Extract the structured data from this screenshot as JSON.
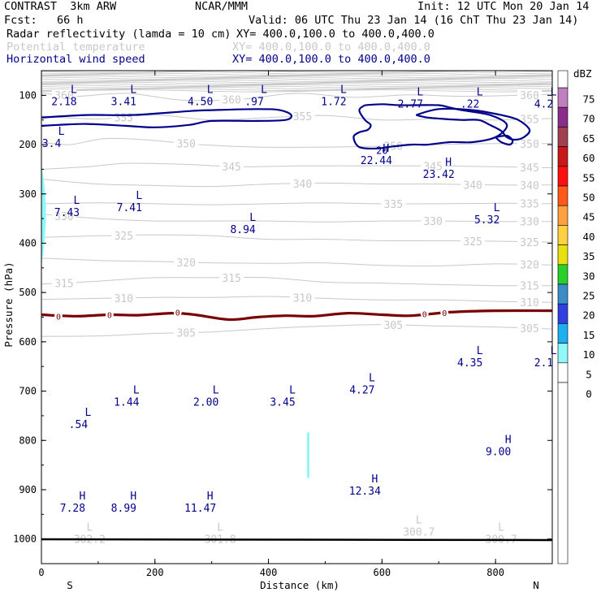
{
  "header": {
    "line1_left": "CONTRAST  3km ARW",
    "line1_mid": "NCAR/MMM",
    "line1_right": "Init: 12 UTC Mon 20 Jan 14",
    "line2_left": "Fcst:   66 h",
    "line2_right": "Valid: 06 UTC Thu 23 Jan 14 (16 ChT Thu 23 Jan 14)",
    "fields": [
      {
        "name": "Radar reflectivity (lamda = 10 cm)",
        "xy": "XY= 400.0,100.0 to 400.0,400.0",
        "color": "#000000"
      },
      {
        "name": "Potential temperature",
        "xy": "XY= 400.0,100.0 to 400.0,400.0",
        "color": "#c8c8c8"
      },
      {
        "name": "Horizontal wind speed",
        "xy": "XY= 400.0,100.0 to 400.0,400.0",
        "color": "#00008b"
      }
    ]
  },
  "chart_data": {
    "type": "contour",
    "xlabel": "Distance (km)",
    "ylabel": "Pressure (hPa)",
    "xlim": [
      0,
      900
    ],
    "ylim": [
      1050,
      50
    ],
    "x_ticks": [
      "0",
      "200",
      "400",
      "600",
      "800"
    ],
    "x_tick_values": [
      0,
      200,
      400,
      600,
      800
    ],
    "y_ticks": [
      "100",
      "200",
      "300",
      "400",
      "500",
      "600",
      "700",
      "800",
      "900",
      "1000"
    ],
    "y_tick_values": [
      100,
      200,
      300,
      400,
      500,
      600,
      700,
      800,
      900,
      1000
    ],
    "x_end_labels": {
      "left": "S",
      "right": "N"
    },
    "theta_contours": [
      {
        "value": 360,
        "p": [
          [
            0,
            95
          ],
          [
            60,
            102
          ],
          [
            150,
            96
          ],
          [
            250,
            110
          ],
          [
            350,
            108
          ],
          [
            450,
            96
          ],
          [
            550,
            104
          ],
          [
            650,
            99
          ],
          [
            750,
            102
          ],
          [
            900,
            98
          ]
        ]
      },
      {
        "value": 355,
        "p": [
          [
            0,
            142
          ],
          [
            100,
            148
          ],
          [
            200,
            140
          ],
          [
            300,
            150
          ],
          [
            400,
            145
          ],
          [
            500,
            141
          ],
          [
            600,
            150
          ],
          [
            700,
            148
          ],
          [
            800,
            150
          ],
          [
            900,
            147
          ]
        ]
      },
      {
        "value": 350,
        "p": [
          [
            0,
            195
          ],
          [
            50,
            200
          ],
          [
            110,
            188
          ],
          [
            180,
            190
          ],
          [
            280,
            200
          ],
          [
            380,
            205
          ],
          [
            500,
            205
          ],
          [
            600,
            203
          ],
          [
            700,
            200
          ],
          [
            800,
            198
          ],
          [
            900,
            198
          ]
        ]
      },
      {
        "value": 345,
        "p": [
          [
            0,
            250
          ],
          [
            80,
            245
          ],
          [
            150,
            238
          ],
          [
            250,
            240
          ],
          [
            350,
            245
          ],
          [
            450,
            243
          ],
          [
            550,
            243
          ],
          [
            650,
            243
          ],
          [
            750,
            244
          ],
          [
            900,
            247
          ]
        ]
      },
      {
        "value": 340,
        "p": [
          [
            0,
            270
          ],
          [
            100,
            280
          ],
          [
            200,
            283
          ],
          [
            300,
            285
          ],
          [
            400,
            280
          ],
          [
            500,
            278
          ],
          [
            600,
            280
          ],
          [
            700,
            280
          ],
          [
            800,
            282
          ],
          [
            900,
            282
          ]
        ]
      },
      {
        "value": 335,
        "p": [
          [
            0,
            320
          ],
          [
            100,
            318
          ],
          [
            200,
            320
          ],
          [
            300,
            322
          ],
          [
            400,
            320
          ],
          [
            500,
            318
          ],
          [
            600,
            320
          ],
          [
            700,
            320
          ],
          [
            800,
            319
          ],
          [
            900,
            320
          ]
        ]
      },
      {
        "value": 330,
        "p": [
          [
            0,
            341
          ],
          [
            100,
            350
          ],
          [
            200,
            355
          ],
          [
            300,
            355
          ],
          [
            400,
            355
          ],
          [
            500,
            357
          ],
          [
            600,
            355
          ],
          [
            700,
            355
          ],
          [
            800,
            356
          ],
          [
            900,
            356
          ]
        ]
      },
      {
        "value": 325,
        "p": [
          [
            0,
            388
          ],
          [
            100,
            385
          ],
          [
            200,
            383
          ],
          [
            300,
            385
          ],
          [
            400,
            392
          ],
          [
            500,
            392
          ],
          [
            600,
            395
          ],
          [
            700,
            395
          ],
          [
            800,
            396
          ],
          [
            900,
            398
          ]
        ]
      },
      {
        "value": 320,
        "p": [
          [
            0,
            430
          ],
          [
            100,
            435
          ],
          [
            200,
            437
          ],
          [
            300,
            440
          ],
          [
            400,
            441
          ],
          [
            500,
            440
          ],
          [
            600,
            445
          ],
          [
            700,
            446
          ],
          [
            800,
            442
          ],
          [
            900,
            444
          ]
        ]
      },
      {
        "value": 315,
        "p": [
          [
            0,
            483
          ],
          [
            100,
            477
          ],
          [
            200,
            470
          ],
          [
            300,
            470
          ],
          [
            400,
            470
          ],
          [
            500,
            479
          ],
          [
            600,
            481
          ],
          [
            700,
            484
          ],
          [
            800,
            486
          ],
          [
            900,
            486
          ]
        ]
      },
      {
        "value": 310,
        "p": [
          [
            0,
            514
          ],
          [
            100,
            512
          ],
          [
            200,
            510
          ],
          [
            300,
            510
          ],
          [
            400,
            508
          ],
          [
            500,
            512
          ],
          [
            600,
            515
          ],
          [
            700,
            515
          ],
          [
            800,
            518
          ],
          [
            900,
            520
          ]
        ]
      },
      {
        "value": 305,
        "p": [
          [
            0,
            589
          ],
          [
            100,
            588
          ],
          [
            200,
            583
          ],
          [
            300,
            580
          ],
          [
            400,
            573
          ],
          [
            500,
            568
          ],
          [
            600,
            565
          ],
          [
            700,
            568
          ],
          [
            800,
            570
          ],
          [
            900,
            574
          ]
        ]
      }
    ],
    "freezing_line_label": "0",
    "reflectivity_cells": [
      {
        "x": 3,
        "p": 335,
        "dbz": 7.5
      },
      {
        "x": 470,
        "p": 830,
        "dbz": 7.5
      }
    ],
    "wind_labels": [
      {
        "type": "L",
        "value": "2.18",
        "x": 40,
        "p": 105
      },
      {
        "type": "L",
        "value": "3.41",
        "x": 145,
        "p": 105
      },
      {
        "type": "L",
        "value": "4.50",
        "x": 280,
        "p": 105
      },
      {
        "type": "L",
        "value": ".97",
        "x": 375,
        "p": 105
      },
      {
        "type": "L",
        "value": "1.72",
        "x": 515,
        "p": 105
      },
      {
        "type": "L",
        "value": "2.77",
        "x": 650,
        "p": 110
      },
      {
        "type": "L",
        "value": ".22",
        "x": 755,
        "p": 110
      },
      {
        "type": "L",
        "value": "4.2",
        "x": 885,
        "p": 110
      },
      {
        "type": "L",
        "value": "3.4",
        "x": 18,
        "p": 190
      },
      {
        "type": "H",
        "value": "22.44",
        "x": 590,
        "p": 225
      },
      {
        "type": "H",
        "value": "23.42",
        "x": 700,
        "p": 253
      },
      {
        "type": "L",
        "value": "7.43",
        "x": 45,
        "p": 330
      },
      {
        "type": "L",
        "value": "7.41",
        "x": 155,
        "p": 320
      },
      {
        "type": "L",
        "value": "8.94",
        "x": 355,
        "p": 365
      },
      {
        "type": "L",
        "value": "5.32",
        "x": 785,
        "p": 345
      },
      {
        "type": "L",
        "value": "4.35",
        "x": 755,
        "p": 635
      },
      {
        "type": "L",
        "value": "2.1",
        "x": 885,
        "p": 635
      },
      {
        "type": "L",
        "value": "4.27",
        "x": 565,
        "p": 690
      },
      {
        "type": "L",
        "value": "1.44",
        "x": 150,
        "p": 715
      },
      {
        "type": "L",
        "value": "2.00",
        "x": 290,
        "p": 715
      },
      {
        "type": "L",
        "value": "3.45",
        "x": 425,
        "p": 715
      },
      {
        "type": "L",
        "value": ".54",
        "x": 65,
        "p": 760
      },
      {
        "type": "H",
        "value": "9.00",
        "x": 805,
        "p": 815
      },
      {
        "type": "H",
        "value": "12.34",
        "x": 570,
        "p": 895
      },
      {
        "type": "H",
        "value": "7.28",
        "x": 55,
        "p": 930
      },
      {
        "type": "H",
        "value": "8.99",
        "x": 145,
        "p": 930
      },
      {
        "type": "H",
        "value": "11.47",
        "x": 280,
        "p": 930
      }
    ],
    "theta_extrema": [
      {
        "type": "L",
        "value": "302.2",
        "x": 85,
        "p": 1000
      },
      {
        "type": "L",
        "value": "301.8",
        "x": 315,
        "p": 1000
      },
      {
        "type": "L",
        "value": "300.7",
        "x": 665,
        "p": 985
      },
      {
        "type": "L",
        "value": "300.7",
        "x": 810,
        "p": 1000
      }
    ]
  },
  "colorbar": {
    "unit": "dBZ",
    "labels": [
      "75",
      "70",
      "65",
      "60",
      "55",
      "50",
      "45",
      "40",
      "35",
      "30",
      "25",
      "20",
      "15",
      "10",
      "5",
      "0"
    ],
    "colors": [
      "#c080c0",
      "#8c2c8c",
      "#a04050",
      "#c81818",
      "#ff1010",
      "#ff5a1a",
      "#ffa040",
      "#ffd040",
      "#e8e010",
      "#28d028",
      "#3c8cc8",
      "#3040e0",
      "#1cb0f0",
      "#90f8f8",
      "#ffffff"
    ],
    "contour_colors": {
      "theta": "#c8c8c8",
      "wind": "#00008b",
      "freezing": "#7a0000",
      "surface": "#000000"
    }
  }
}
